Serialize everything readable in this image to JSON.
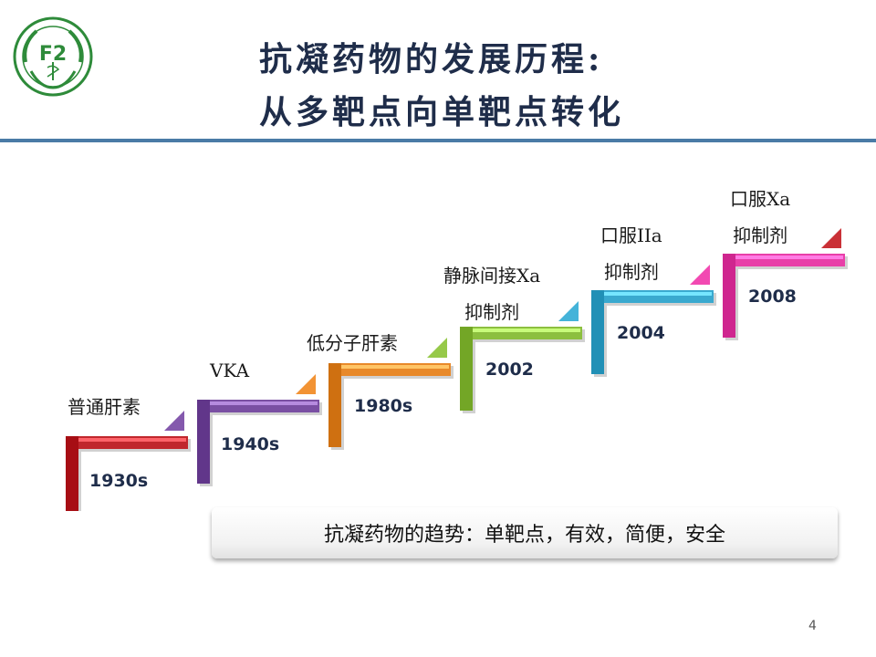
{
  "slide": {
    "title_line1": "抗凝药物的发展历程:",
    "title_line2": "从多靶点向单靶点转化",
    "page_number": "4"
  },
  "logo": {
    "monogram": "F2",
    "color": "#2e8b3a"
  },
  "steps": [
    {
      "year": "1930s",
      "label": [
        "普通肝素"
      ],
      "color": "#c0272d"
    },
    {
      "year": "1940s",
      "label": [
        "VKA"
      ],
      "color": "#7a4fa3"
    },
    {
      "year": "1980s",
      "label": [
        "低分子肝素"
      ],
      "color": "#e8892a"
    },
    {
      "year": "2002",
      "label": [
        "静脉间接Xa",
        "抑制剂"
      ],
      "color": "#8cbf3f"
    },
    {
      "year": "2004",
      "label": [
        "口服IIa",
        "抑制剂"
      ],
      "color": "#3aa9cf"
    },
    {
      "year": "2008",
      "label": [
        "口服Xa",
        "抑制剂"
      ],
      "color": "#e83fa8"
    }
  ],
  "trend": {
    "text": "抗凝药物的趋势：单靶点，有效，简便，安全"
  }
}
